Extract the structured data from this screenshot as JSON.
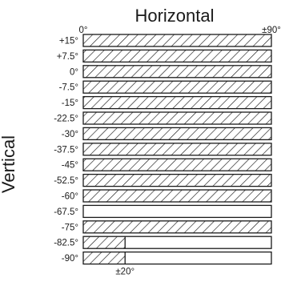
{
  "chart_data": {
    "type": "bar",
    "title": "Horizontal",
    "ylabel": "Vertical",
    "x_axis": {
      "min_label": "0°",
      "max_label": "±90°",
      "min": 0,
      "max": 90
    },
    "rows": [
      {
        "label": "+15°",
        "vertical": 15,
        "horizontal_extent": 90
      },
      {
        "label": "+7.5°",
        "vertical": 7.5,
        "horizontal_extent": 90
      },
      {
        "label": "0°",
        "vertical": 0,
        "horizontal_extent": 90
      },
      {
        "label": "-7.5°",
        "vertical": -7.5,
        "horizontal_extent": 90
      },
      {
        "label": "-15°",
        "vertical": -15,
        "horizontal_extent": 90
      },
      {
        "label": "-22.5°",
        "vertical": -22.5,
        "horizontal_extent": 90
      },
      {
        "label": "-30°",
        "vertical": -30,
        "horizontal_extent": 90
      },
      {
        "label": "-37.5°",
        "vertical": -37.5,
        "horizontal_extent": 90
      },
      {
        "label": "-45°",
        "vertical": -45,
        "horizontal_extent": 90
      },
      {
        "label": "-52.5°",
        "vertical": -52.5,
        "horizontal_extent": 90
      },
      {
        "label": "-60°",
        "vertical": -60,
        "horizontal_extent": 90
      },
      {
        "label": "-67.5°",
        "vertical": -67.5,
        "horizontal_extent": 0
      },
      {
        "label": "-75°",
        "vertical": -75,
        "horizontal_extent": 90
      },
      {
        "label": "-82.5°",
        "vertical": -82.5,
        "horizontal_extent": 20
      },
      {
        "label": "-90°",
        "vertical": -90,
        "horizontal_extent": 20
      }
    ],
    "annotations": [
      {
        "text": "±20°",
        "value": 20
      }
    ],
    "hatch_color": "#1a1a1a",
    "background_color": "#ffffff"
  }
}
